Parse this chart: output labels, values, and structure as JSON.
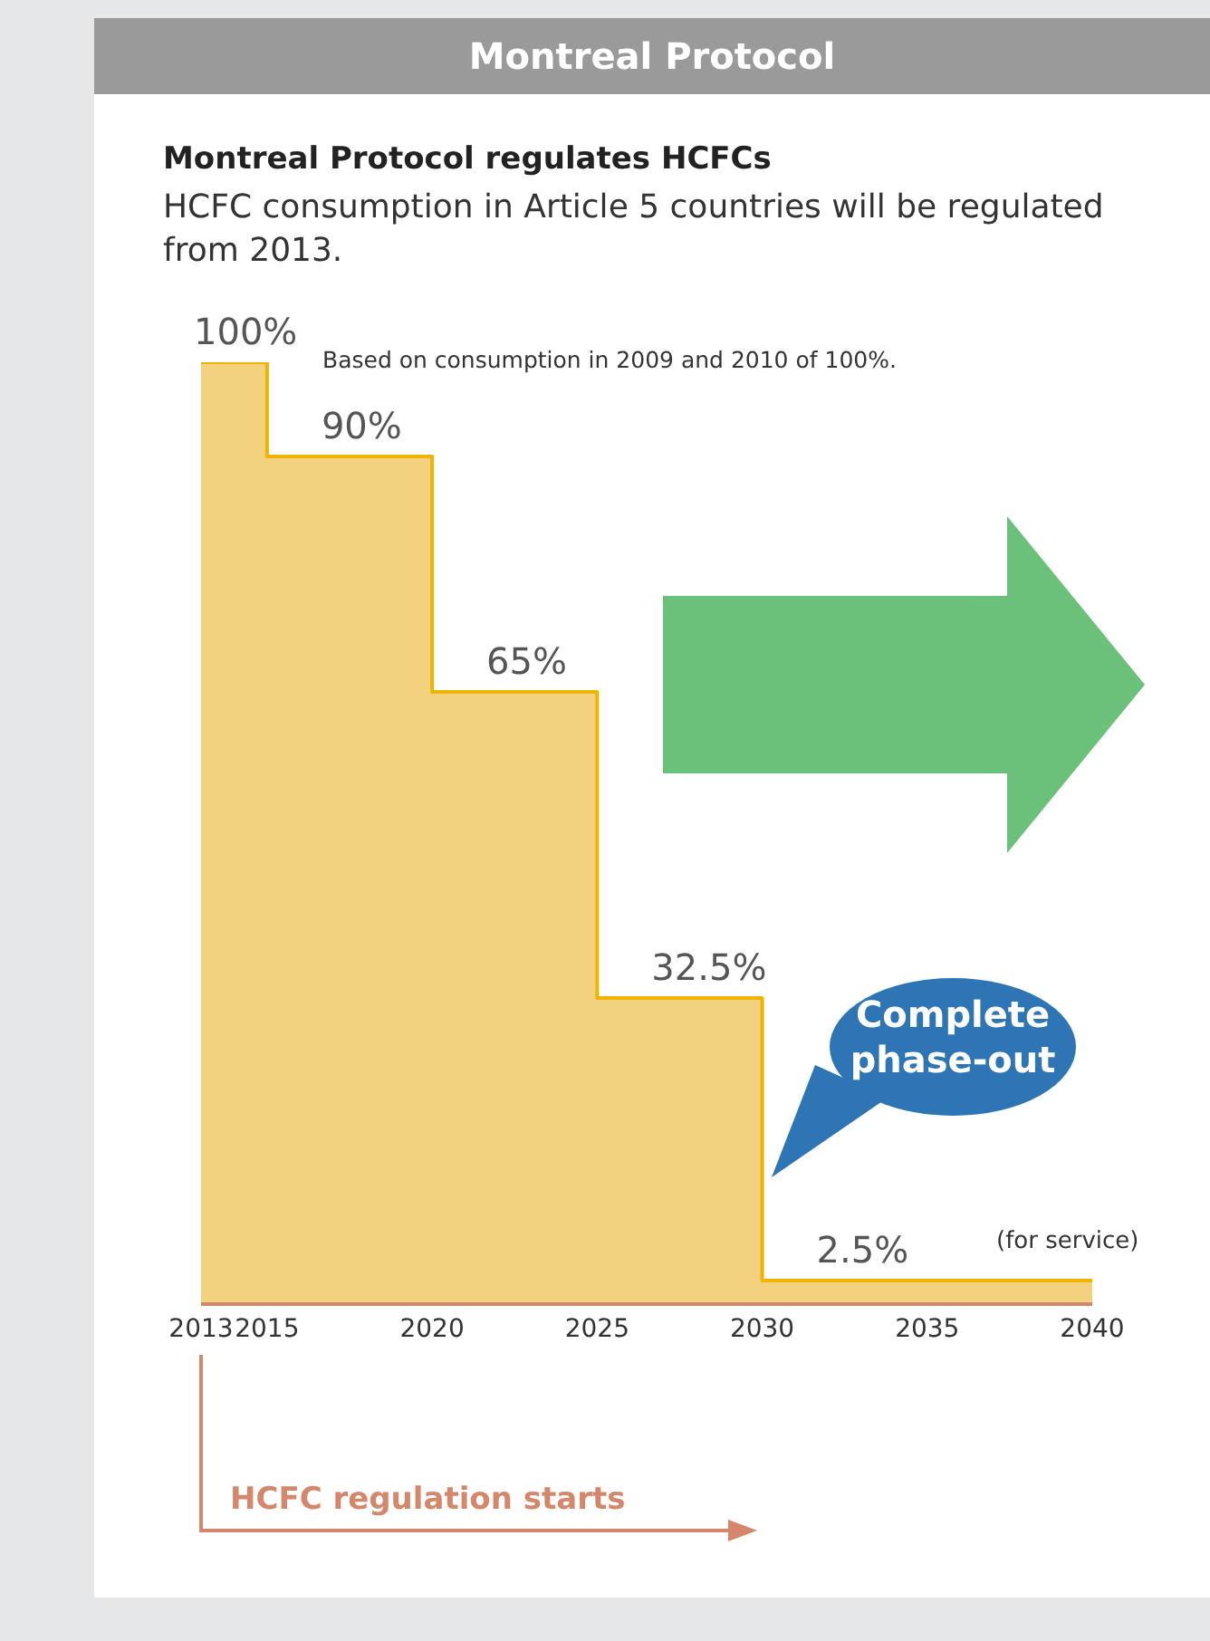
{
  "chart_data": {
    "type": "step",
    "title": "Montreal Protocol",
    "subtitle": "Montreal Protocol regulates HCFCs",
    "annotations": [
      "HCFC consumption in Article 5 countries will be regulated from 2013.",
      "Based on consumption in 2009 and 2010 of 100%.",
      "(for service)",
      "Complete phase-out",
      "HCFC regulation starts"
    ],
    "x": [
      2013,
      2015,
      2020,
      2025,
      2030,
      2040
    ],
    "values": [
      100,
      90,
      65,
      32.5,
      2.5,
      2.5
    ],
    "value_labels": [
      "100%",
      "90%",
      "65%",
      "32.5%",
      "2.5%",
      null
    ],
    "color": "#f0b400",
    "xlim": [
      2013,
      2040
    ],
    "xticks": [
      2013,
      2015,
      2020,
      2025,
      2030,
      2035,
      2040
    ]
  }
}
